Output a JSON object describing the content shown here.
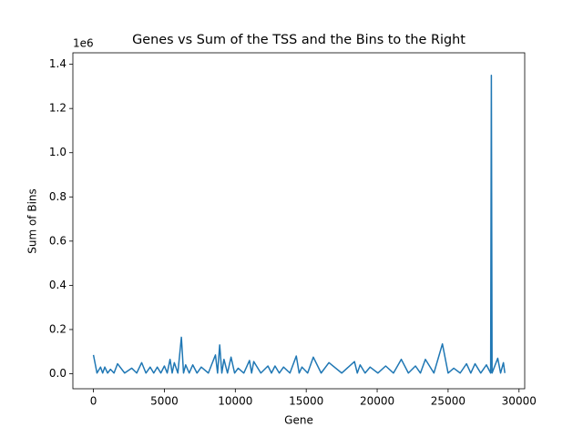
{
  "chart_data": {
    "type": "line",
    "title": "Genes vs Sum of the TSS and the Bins to the Right",
    "xlabel": "Gene",
    "ylabel": "Sum of Bins",
    "y_offset_label": "1e6",
    "xlim": [
      -1450,
      30400
    ],
    "ylim": [
      -0.068,
      1.452
    ],
    "xticks": [
      0,
      5000,
      10000,
      15000,
      20000,
      25000,
      30000
    ],
    "yticks": [
      {
        "value": 0,
        "label": "0.0"
      },
      0.2,
      0.4,
      0.6,
      0.8,
      {
        "value": 1,
        "label": "1.0"
      },
      1.2,
      1.4
    ],
    "grid": false,
    "series": [
      {
        "color": "#1f77b4",
        "x": [
          0,
          250,
          500,
          650,
          800,
          1000,
          1200,
          1450,
          1700,
          2200,
          2700,
          3050,
          3400,
          3700,
          4000,
          4250,
          4500,
          4750,
          5000,
          5200,
          5400,
          5550,
          5700,
          5950,
          6200,
          6350,
          6500,
          6750,
          7000,
          7300,
          7600,
          8100,
          8600,
          8750,
          8900,
          9050,
          9200,
          9450,
          9700,
          9950,
          10200,
          10600,
          11000,
          11150,
          11300,
          11800,
          12300,
          12550,
          12800,
          13100,
          13400,
          13850,
          14300,
          14500,
          14700,
          15100,
          15500,
          16050,
          16600,
          17500,
          18400,
          18600,
          18800,
          19150,
          19500,
          20050,
          20600,
          21150,
          21700,
          22200,
          22700,
          23050,
          23400,
          24000,
          24600,
          25000,
          25400,
          25850,
          26300,
          26600,
          26900,
          27300,
          27700,
          28000,
          28050,
          28100,
          28500,
          28700,
          28900,
          29000
        ],
        "values": [
          0.085,
          0.003,
          0.03,
          0.003,
          0.03,
          0.003,
          0.02,
          0.003,
          0.045,
          0.003,
          0.025,
          0.003,
          0.05,
          0.003,
          0.03,
          0.003,
          0.03,
          0.003,
          0.035,
          0.003,
          0.065,
          0.003,
          0.05,
          0.003,
          0.165,
          0.003,
          0.04,
          0.003,
          0.04,
          0.003,
          0.03,
          0.003,
          0.085,
          0.003,
          0.13,
          0.003,
          0.065,
          0.003,
          0.075,
          0.003,
          0.025,
          0.003,
          0.06,
          0.003,
          0.055,
          0.003,
          0.035,
          0.003,
          0.035,
          0.003,
          0.03,
          0.003,
          0.08,
          0.003,
          0.03,
          0.003,
          0.075,
          0.003,
          0.05,
          0.003,
          0.055,
          0.003,
          0.04,
          0.003,
          0.03,
          0.003,
          0.035,
          0.003,
          0.065,
          0.003,
          0.035,
          0.003,
          0.065,
          0.003,
          0.135,
          0.003,
          0.025,
          0.003,
          0.045,
          0.003,
          0.045,
          0.003,
          0.04,
          0.003,
          1.35,
          0.003,
          0.07,
          0.003,
          0.05,
          0.003
        ]
      }
    ]
  }
}
